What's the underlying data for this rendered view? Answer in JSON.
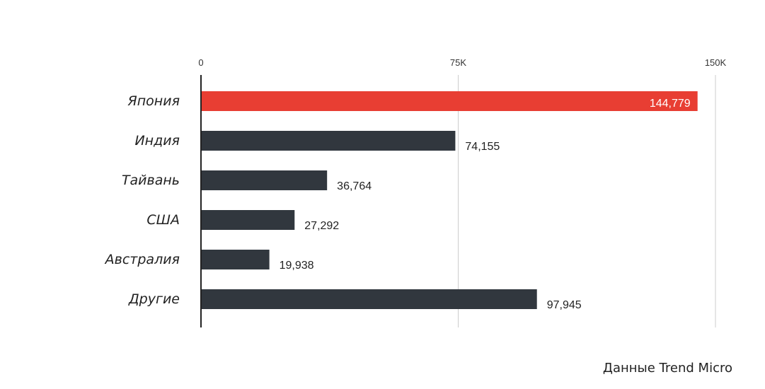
{
  "chart_data": {
    "type": "bar",
    "orientation": "horizontal",
    "categories": [
      "Япония",
      "Индия",
      "Тайвань",
      "США",
      "Австралия",
      "Другие"
    ],
    "values": [
      144779,
      74155,
      36764,
      27292,
      19938,
      97945
    ],
    "value_labels": [
      "144,779",
      "74,155",
      "36,764",
      "27,292",
      "19,938",
      "97,945"
    ],
    "x_ticks": [
      0,
      75000,
      150000
    ],
    "x_tick_labels": [
      "0",
      "75K",
      "150K"
    ],
    "xlim": [
      0,
      150000
    ],
    "grid": true,
    "highlight_index": 0,
    "colors": {
      "highlight": "#e83e33",
      "default": "#31373e",
      "grid": "#cccccc",
      "axis": "#222222"
    }
  },
  "source": "Данные Trend Micro"
}
